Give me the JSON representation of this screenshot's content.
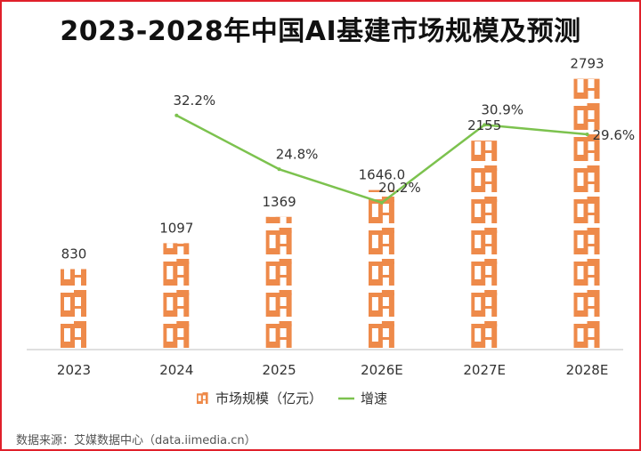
{
  "title": "2023-2028年中国AI基建市场规模及预测",
  "source": "数据来源：艾媒数据中心（data.iimedia.cn）",
  "chart_data": {
    "type": "bar",
    "categories": [
      "2023",
      "2024",
      "2025",
      "2026E",
      "2027E",
      "2028E"
    ],
    "series": [
      {
        "name": "市场规模（亿元）",
        "type": "bar",
        "values": [
          830,
          1097,
          1369,
          1646.0,
          2155,
          2793
        ],
        "value_labels": [
          "830",
          "1097",
          "1369",
          "1646.0",
          "2155",
          "2793"
        ],
        "color": "#ee8a4a"
      },
      {
        "name": "增速",
        "type": "line",
        "values": [
          null,
          32.2,
          24.8,
          20.2,
          30.9,
          29.6
        ],
        "value_labels": [
          "",
          "32.2%",
          "24.8%",
          "20.2%",
          "30.9%",
          "29.6%"
        ],
        "color": "#7cc24e"
      }
    ],
    "ylim": [
      0,
      3000
    ],
    "y2lim": [
      0,
      40
    ],
    "grid": false,
    "legend": "bottom"
  }
}
